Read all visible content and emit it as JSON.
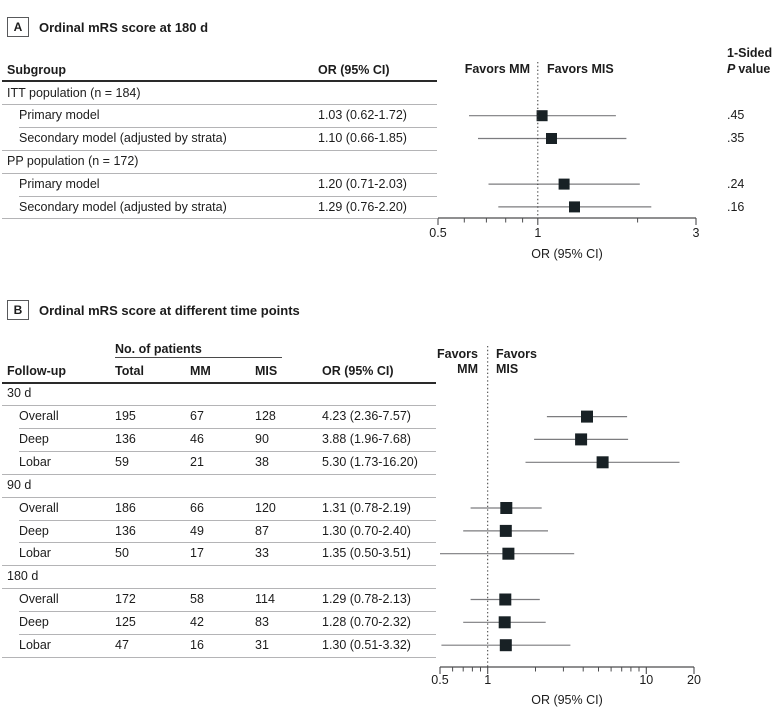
{
  "chart_data": [
    {
      "type": "forest",
      "tag": "A",
      "title": "Ordinal mRS score at 180 d",
      "col_headers": {
        "subgroup": "Subgroup",
        "or": "OR (95% CI)"
      },
      "favors_left": "Favors MM",
      "favors_right": "Favors MIS",
      "pvalue_header": {
        "line1": "1-Sided",
        "p_label": "P",
        "value_label": "value"
      },
      "axis": {
        "scale": "log",
        "min": 0.5,
        "max": 3,
        "ref_line": 1,
        "tick_values": [
          0.5,
          1,
          3
        ],
        "tick_labels": [
          "0.5",
          "1",
          "3"
        ],
        "minor_ticks": [
          0.6,
          0.7,
          0.8,
          0.9,
          2
        ],
        "label": "OR (95% CI)"
      },
      "rows": [
        {
          "type": "group",
          "label": "ITT population (n = 184)"
        },
        {
          "type": "data",
          "label": "Primary model",
          "or_text": "1.03 (0.62-1.72)",
          "or": 1.03,
          "lo": 0.62,
          "hi": 1.72,
          "p": ".45"
        },
        {
          "type": "data",
          "label": "Secondary model (adjusted by strata)",
          "or_text": "1.10 (0.66-1.85)",
          "or": 1.1,
          "lo": 0.66,
          "hi": 1.85,
          "p": ".35"
        },
        {
          "type": "group",
          "label": "PP population (n = 172)"
        },
        {
          "type": "data",
          "label": "Primary model",
          "or_text": "1.20 (0.71-2.03)",
          "or": 1.2,
          "lo": 0.71,
          "hi": 2.03,
          "p": ".24"
        },
        {
          "type": "data",
          "label": "Secondary model (adjusted by strata)",
          "or_text": "1.29 (0.76-2.20)",
          "or": 1.29,
          "lo": 0.76,
          "hi": 2.2,
          "p": ".16"
        }
      ]
    },
    {
      "type": "forest",
      "tag": "B",
      "title": "Ordinal mRS score at different time points",
      "col_group_header": "No. of patients",
      "col_headers": {
        "followup": "Follow-up",
        "total": "Total",
        "mm": "MM",
        "mis": "MIS",
        "or": "OR (95% CI)"
      },
      "favors_left": [
        "Favors",
        "MM"
      ],
      "favors_right": [
        "Favors",
        "MIS"
      ],
      "axis": {
        "scale": "log",
        "min": 0.5,
        "max": 20,
        "ref_line": 1,
        "tick_values": [
          0.5,
          1,
          10,
          20
        ],
        "tick_labels": [
          "0.5",
          "1",
          "10",
          "20"
        ],
        "minor_ticks": [
          0.6,
          0.7,
          0.8,
          0.9,
          2,
          3,
          4,
          5,
          6,
          7,
          8,
          9
        ],
        "label": "OR (95% CI)"
      },
      "rows": [
        {
          "type": "group",
          "label": "30 d"
        },
        {
          "type": "data",
          "label": "Overall",
          "total": "195",
          "mm": "67",
          "mis": "128",
          "or_text": "4.23 (2.36-7.57)",
          "or": 4.23,
          "lo": 2.36,
          "hi": 7.57
        },
        {
          "type": "data",
          "label": "Deep",
          "total": "136",
          "mm": "46",
          "mis": "90",
          "or_text": "3.88 (1.96-7.68)",
          "or": 3.88,
          "lo": 1.96,
          "hi": 7.68
        },
        {
          "type": "data",
          "label": "Lobar",
          "total": "59",
          "mm": "21",
          "mis": "38",
          "or_text": "5.30 (1.73-16.20)",
          "or": 5.3,
          "lo": 1.73,
          "hi": 16.2
        },
        {
          "type": "group",
          "label": "90 d"
        },
        {
          "type": "data",
          "label": "Overall",
          "total": "186",
          "mm": "66",
          "mis": "120",
          "or_text": "1.31 (0.78-2.19)",
          "or": 1.31,
          "lo": 0.78,
          "hi": 2.19
        },
        {
          "type": "data",
          "label": "Deep",
          "total": "136",
          "mm": "49",
          "mis": "87",
          "or_text": "1.30 (0.70-2.40)",
          "or": 1.3,
          "lo": 0.7,
          "hi": 2.4
        },
        {
          "type": "data",
          "label": "Lobar",
          "total": "50",
          "mm": "17",
          "mis": "33",
          "or_text": "1.35 (0.50-3.51)",
          "or": 1.35,
          "lo": 0.5,
          "hi": 3.51
        },
        {
          "type": "group",
          "label": "180 d"
        },
        {
          "type": "data",
          "label": "Overall",
          "total": "172",
          "mm": "58",
          "mis": "114",
          "or_text": "1.29 (0.78-2.13)",
          "or": 1.29,
          "lo": 0.78,
          "hi": 2.13
        },
        {
          "type": "data",
          "label": "Deep",
          "total": "125",
          "mm": "42",
          "mis": "83",
          "or_text": "1.28 (0.70-2.32)",
          "or": 1.28,
          "lo": 0.7,
          "hi": 2.32
        },
        {
          "type": "data",
          "label": "Lobar",
          "total": "47",
          "mm": "16",
          "mis": "31",
          "or_text": "1.30 (0.51-3.32)",
          "or": 1.3,
          "lo": 0.51,
          "hi": 3.32
        }
      ]
    }
  ],
  "colors": {
    "marker": "#182125",
    "ci_line": "#7c7c7f",
    "axis": "#4c4c4e",
    "ref_line": "#3a3a3a",
    "rule_light": "#b4b4b6",
    "rule_dark": "#2a2a2a",
    "text": "#1c1c1c"
  }
}
